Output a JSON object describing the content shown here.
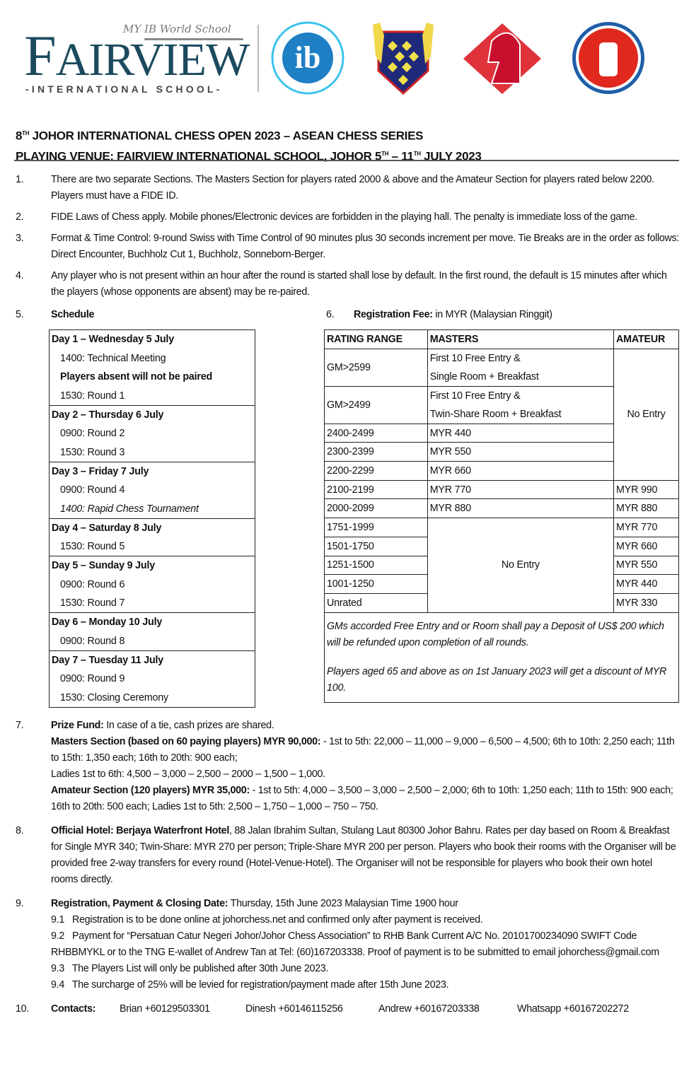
{
  "header": {
    "school_tagline": "MY IB World School",
    "school_name_initial": "F",
    "school_name_rest": "AIRVIEW",
    "school_subtitle": "-INTERNATIONAL SCHOOL-",
    "ib_logo_text": "ib",
    "title_line1_pre": "8",
    "title_line1_sup": "TH",
    "title_line1_post": " JOHOR INTERNATIONAL CHESS OPEN 2023 – ASEAN CHESS SERIES",
    "title_line2_pre": "PLAYING VENUE: FAIRVIEW INTERNATIONAL SCHOOL, JOHOR 5",
    "title_line2_sup1": "TH",
    "title_line2_mid": " – 11",
    "title_line2_sup2": "TH",
    "title_line2_post": " JULY 2023"
  },
  "items": [
    {
      "num": "1.",
      "text": "There are two separate Sections. The Masters Section for players rated 2000 & above and the Amateur Section for players rated below 2200. Players must have a FIDE ID."
    },
    {
      "num": "2.",
      "text": "FIDE Laws of Chess apply. Mobile phones/Electronic devices are forbidden in the playing hall. The penalty is immediate loss of the game."
    },
    {
      "num": "3.",
      "text": "Format & Time Control: 9-round Swiss with Time Control of 90 minutes plus 30 seconds increment per move. Tie Breaks are in the order as follows: Direct Encounter, Buchholz Cut 1, Buchholz, Sonneborn-Berger."
    },
    {
      "num": "4.",
      "text": "Any player who is not present within an hour after the round is started shall lose by default. In the first round, the default is 15 minutes after which the players (whose opponents are absent) may be re-paired."
    }
  ],
  "schedule": {
    "num": "5.",
    "heading": "Schedule",
    "rows": [
      "Day 1 – Wednesday 5 July",
      "1400: Technical Meeting",
      "Players absent will not be paired",
      "1530: Round 1",
      "Day 2 – Thursday 6 July",
      "0900: Round 2",
      "1530: Round 3",
      "Day 3 – Friday 7 July",
      "0900: Round 4",
      "1400: Rapid Chess Tournament",
      "Day 4 – Saturday 8 July",
      "1530: Round 5",
      "Day 5 – Sunday 9 July",
      "0900: Round 6",
      "1530: Round 7",
      "Day 6 – Monday 10 July",
      "0900: Round 8",
      "Day 7 – Tuesday 11 July",
      "0900: Round 9",
      "1530: Closing Ceremony"
    ]
  },
  "fee": {
    "num": "6.",
    "heading": "Registration Fee:",
    "heading_rest": " in MYR (Malaysian Ringgit)",
    "columns": [
      "RATING RANGE",
      "MASTERS",
      "AMATEUR"
    ],
    "gm1": {
      "range": "GM>2599",
      "l1": "First 10 Free Entry &",
      "l2": "Single Room + Breakfast"
    },
    "gm2": {
      "range": "GM>2499",
      "l1": "First 10 Free Entry &",
      "l2": "Twin-Share Room + Breakfast"
    },
    "no_entry": "No Entry",
    "rows": [
      {
        "range": "2400-2499",
        "masters": "MYR 440"
      },
      {
        "range": "2300-2399",
        "masters": "MYR 550"
      },
      {
        "range": "2200-2299",
        "masters": "MYR 660"
      },
      {
        "range": "2100-2199",
        "masters": "MYR 770",
        "amateur": "MYR 990"
      },
      {
        "range": "2000-2099",
        "masters": "MYR 880",
        "amateur": "MYR 880"
      },
      {
        "range": "1751-1999",
        "amateur": "MYR 770"
      },
      {
        "range": "1501-1750",
        "amateur": "MYR 660"
      },
      {
        "range": "1251-1500",
        "amateur": "MYR 550"
      },
      {
        "range": "1001-1250",
        "amateur": "MYR 440"
      },
      {
        "range": "Unrated",
        "amateur": "MYR 330"
      }
    ],
    "note1": "GMs accorded Free Entry and or Room shall pay a Deposit of US$ 200 which will be refunded upon completion of all rounds.",
    "note2": "Players aged 65 and above as on 1st January 2023 will get a discount of MYR 100."
  },
  "prize": {
    "num": "7.",
    "h1": "Prize Fund:",
    "t1": " In case of a tie, cash prizes are shared.",
    "h2": "Masters Section (based on 60 paying players) MYR 90,000:",
    "t2": " - 1st to 5th: 22,000 – 11,000 – 9,000 – 6,500 – 4,500; 6th to 10th: 2,250 each; 11th to 15th: 1,350 each; 16th to 20th: 900 each;",
    "t3": "Ladies 1st to 6th: 4,500 – 3,000 – 2,500 – 2000 – 1,500 – 1,000.",
    "h4": "Amateur Section (120 players) MYR 35,000:",
    "t4": " - 1st to 5th: 4,000 – 3,500 – 3,000 – 2,500 – 2,000; 6th to 10th: 1,250 each; 11th to 15th: 900 each; 16th to 20th: 500 each; Ladies 1st to 5th: 2,500 – 1,750 – 1,000 – 750 – 750."
  },
  "hotel": {
    "num": "8.",
    "h": "Official Hotel: Berjaya Waterfront Hotel",
    "t": ", 88 Jalan Ibrahim Sultan, Stulang Laut 80300 Johor Bahru. Rates per day based on Room & Breakfast for Single MYR 340; Twin-Share: MYR 270 per person; Triple-Share MYR 200 per person. Players who book their rooms with the Organiser will be provided free 2-way transfers for every round (Hotel-Venue-Hotel). The Organiser will not be responsible for players who book their own hotel rooms directly."
  },
  "registration": {
    "num": "9.",
    "h": "Registration, Payment & Closing Date:",
    "t": " Thursday, 15th June 2023 Malaysian Time 1900 hour",
    "s1": "9.1   Registration is to be done online at johorchess.net and confirmed only after payment is received.",
    "s2": "9.2   Payment for “Persatuan Catur Negeri Johor/Johor Chess Association” to RHB Bank Current A/C No. 20101700234090 SWIFT Code RHBBMYKL or to the TNG E-wallet of Andrew Tan at Tel: (60)167203338. Proof of payment is to be submitted to email johorchess@gmail.com",
    "s3": "9.3   The Players List will only be published after 30th June 2023.",
    "s4": "9.4   The surcharge of 25% will be levied for registration/payment made after 15th June 2023."
  },
  "contacts": {
    "num": "10.",
    "h": "Contacts:",
    "list": [
      "Brian +60129503301",
      "Dinesh +60146115256",
      "Andrew +60167203338",
      "Whatsapp +60167202272"
    ]
  }
}
